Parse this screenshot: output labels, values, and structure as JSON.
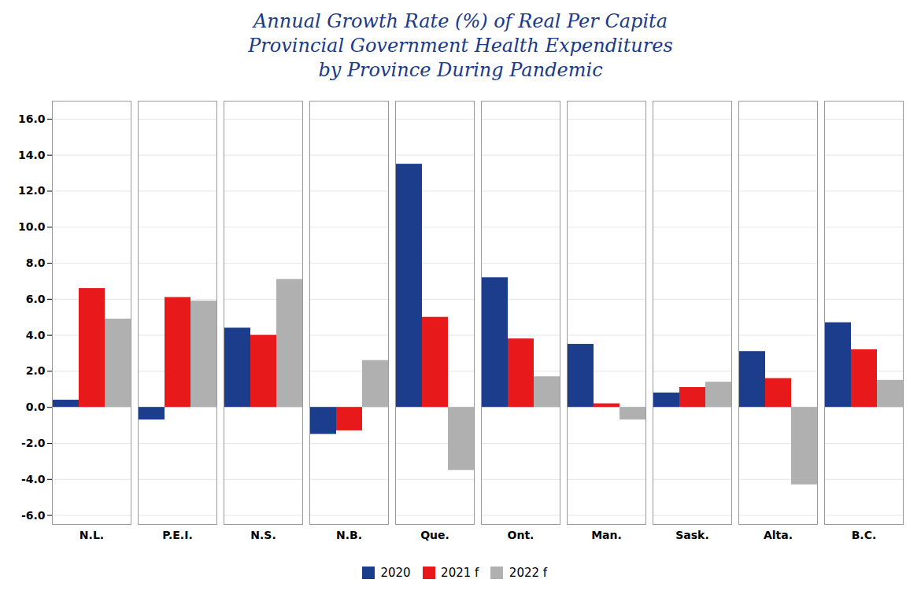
{
  "chart_data": {
    "type": "bar",
    "title": "Annual Growth Rate (%) of Real Per Capita\nProvincial Government Health Expenditures\nby Province During Pandemic",
    "categories": [
      "N.L.",
      "P.E.I.",
      "N.S.",
      "N.B.",
      "Que.",
      "Ont.",
      "Man.",
      "Sask.",
      "Alta.",
      "B.C."
    ],
    "series": [
      {
        "name": "2020",
        "color": "#1c3d8c",
        "values": [
          0.4,
          -0.7,
          4.4,
          -1.5,
          13.5,
          7.2,
          3.5,
          0.8,
          3.1,
          4.7
        ]
      },
      {
        "name": "2021 f",
        "color": "#e8191a",
        "values": [
          6.6,
          6.1,
          4.0,
          -1.3,
          5.0,
          3.8,
          0.2,
          1.1,
          1.6,
          3.2
        ]
      },
      {
        "name": "2022 f",
        "color": "#b0b0b0",
        "values": [
          4.9,
          5.9,
          7.1,
          2.6,
          -3.5,
          1.7,
          -0.7,
          1.4,
          -4.3,
          1.5
        ]
      }
    ],
    "ylim": [
      -6.5,
      17.0
    ],
    "yticks": [
      {
        "value": -6,
        "label": "-6.0"
      },
      {
        "value": -4,
        "label": "-4.0"
      },
      {
        "value": -2,
        "label": "-2.0"
      },
      {
        "value": 0,
        "label": "0.0"
      },
      {
        "value": 2,
        "label": "2.0"
      },
      {
        "value": 4,
        "label": "4.0"
      },
      {
        "value": 6,
        "label": "6.0"
      },
      {
        "value": 8,
        "label": "8.0"
      },
      {
        "value": 10,
        "label": "10.0"
      },
      {
        "value": 12,
        "label": "12.0"
      },
      {
        "value": 14,
        "label": "14.0"
      },
      {
        "value": 16,
        "label": "16.0"
      }
    ],
    "grid": true,
    "legend": "bottom"
  }
}
